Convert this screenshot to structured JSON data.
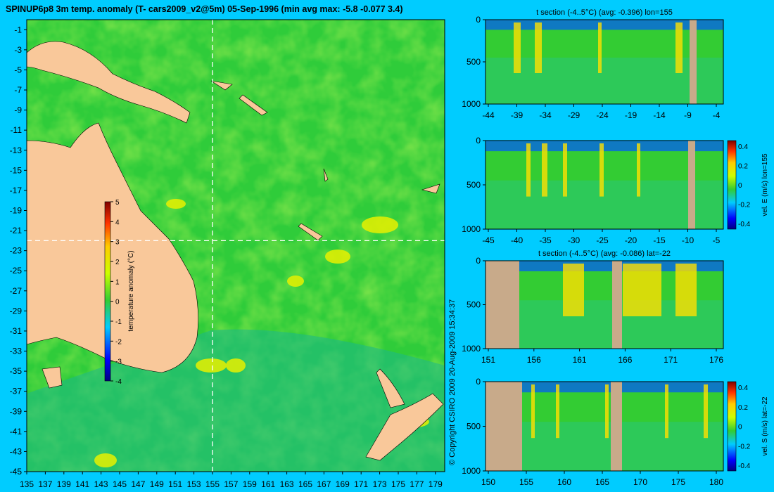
{
  "main_title": "SPINUP6p8 3m temp. anomaly (T- cars2009_v2@5m) 05-Sep-1996 (min avg max: -5.8 -0.077 3.4)",
  "copyright": "© Copyright CSIRO 2009   20-Aug-2009 15:34:37",
  "colors": {
    "background": "#00ccff",
    "land": "#f9c89a",
    "section_land": "#c8aa8a",
    "ocean": "#33cc33"
  },
  "chart_data": [
    {
      "type": "heatmap",
      "name": "temperature anomaly map",
      "x_ticks": [
        "135",
        "137",
        "139",
        "141",
        "143",
        "145",
        "147",
        "149",
        "151",
        "153",
        "155",
        "157",
        "159",
        "161",
        "163",
        "165",
        "167",
        "169",
        "171",
        "173",
        "175",
        "177",
        "179"
      ],
      "y_ticks": [
        "-1",
        "-3",
        "-5",
        "-7",
        "-9",
        "-11",
        "-13",
        "-15",
        "-17",
        "-19",
        "-21",
        "-23",
        "-25",
        "-27",
        "-29",
        "-31",
        "-33",
        "-35",
        "-37",
        "-39",
        "-41",
        "-43",
        "-45"
      ],
      "xlim": [
        135,
        180
      ],
      "ylim": [
        -45,
        0
      ],
      "section_lon": 155,
      "section_lat": -22,
      "colorbar": {
        "label": "temperature anomaly (°C)",
        "ticks": [
          "5",
          "4",
          "3",
          "2",
          "1",
          "0",
          "-1",
          "-2",
          "-3",
          "-4"
        ],
        "range": [
          -4,
          5
        ]
      }
    },
    {
      "type": "heatmap",
      "name": "t section lon=155",
      "title": "t section (-4..5°C) (avg: -0.396) lon=155",
      "x_ticks": [
        "-44",
        "-39",
        "-34",
        "-29",
        "-24",
        "-19",
        "-14",
        "-9",
        "-4"
      ],
      "y_ticks": [
        "0",
        "500",
        "1000"
      ]
    },
    {
      "type": "heatmap",
      "name": "vel E section lon=155",
      "x_ticks": [
        "-45",
        "-40",
        "-35",
        "-30",
        "-25",
        "-20",
        "-15",
        "-10",
        "-5"
      ],
      "y_ticks": [
        "0",
        "500",
        "1000"
      ],
      "colorbar": {
        "label": "vel. E (m/s) lon=155",
        "ticks": [
          "0.4",
          "0.2",
          "0",
          "-0.2",
          "-0.4"
        ],
        "range": [
          -0.4,
          0.4
        ]
      }
    },
    {
      "type": "heatmap",
      "name": "t section lat=-22",
      "title": "t section (-4..5°C) (avg: -0.086) lat=-22",
      "x_ticks": [
        "151",
        "156",
        "161",
        "166",
        "171",
        "176"
      ],
      "y_ticks": [
        "0",
        "500",
        "1000"
      ]
    },
    {
      "type": "heatmap",
      "name": "vel S section lat=-22",
      "x_ticks": [
        "150",
        "155",
        "160",
        "165",
        "170",
        "175",
        "180"
      ],
      "y_ticks": [
        "0",
        "500",
        "1000"
      ],
      "colorbar": {
        "label": "vel. S (m/s) lat=-22",
        "ticks": [
          "0.4",
          "0.2",
          "0",
          "-0.2",
          "-0.4"
        ],
        "range": [
          -0.4,
          0.4
        ]
      }
    }
  ]
}
